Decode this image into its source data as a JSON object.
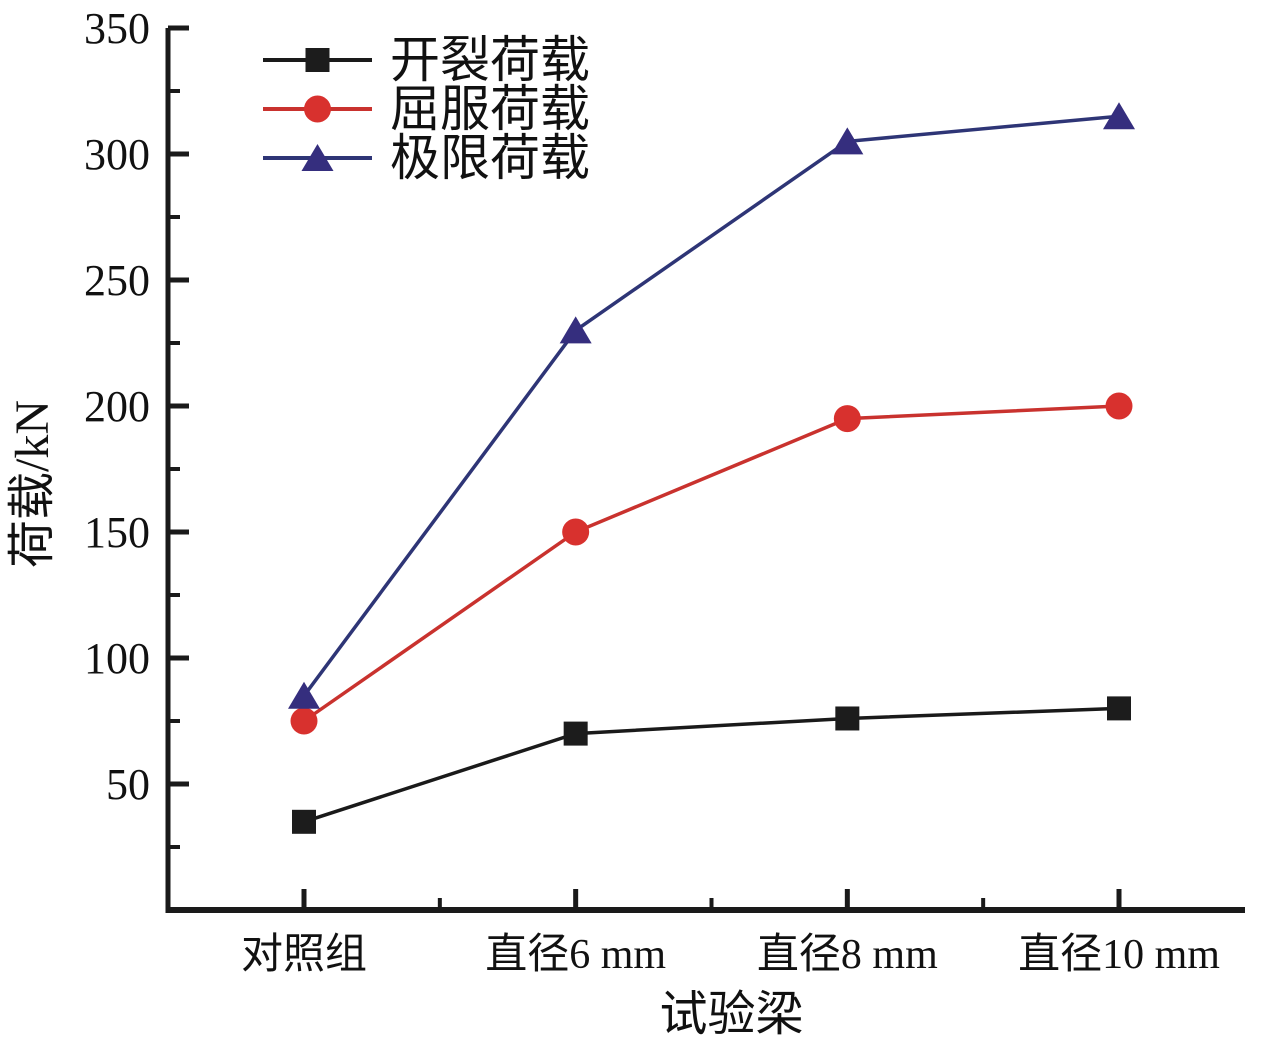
{
  "chart_data": {
    "type": "line",
    "title": "",
    "xlabel": "试验梁",
    "ylabel": "荷载/kN",
    "categories": [
      "对照组",
      "直径6 mm",
      "直径8 mm",
      "直径10 mm"
    ],
    "series": [
      {
        "name": "开裂荷载",
        "marker": "square",
        "line_color": "#1a1a1a",
        "marker_color": "#1c1c1c",
        "values": [
          35,
          70,
          76,
          80
        ]
      },
      {
        "name": "屈服荷载",
        "marker": "circle",
        "line_color": "#c9322e",
        "marker_color": "#d8312e",
        "values": [
          75,
          150,
          195,
          200
        ]
      },
      {
        "name": "极限荷载",
        "marker": "triangle",
        "line_color": "#2e3576",
        "marker_color": "#352e7e",
        "values": [
          85,
          230,
          305,
          315
        ]
      }
    ],
    "ylim": [
      0,
      350
    ],
    "ytick_step": 50,
    "yminor_step": 25,
    "legend_position": "top-left",
    "grid": false,
    "axis_color": "#1a1a1a"
  }
}
